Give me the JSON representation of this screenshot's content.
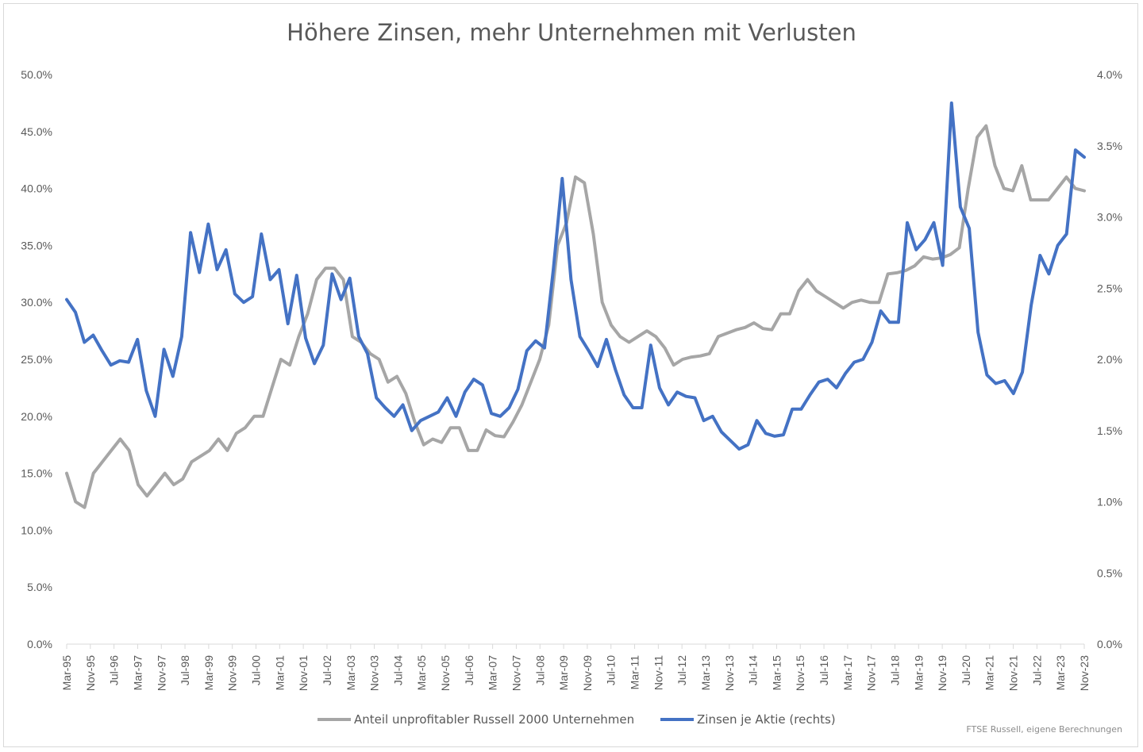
{
  "chart_data": {
    "type": "line",
    "title": "Höhere Zinsen, mehr Unternehmen mit Verlusten",
    "source": "FTSE Russell, eigene Berechnungen",
    "left_axis": {
      "ylim": [
        0,
        50
      ],
      "ticks": [
        "0.0%",
        "5.0%",
        "10.0%",
        "15.0%",
        "20.0%",
        "25.0%",
        "30.0%",
        "35.0%",
        "40.0%",
        "45.0%",
        "50.0%"
      ]
    },
    "right_axis": {
      "ylim": [
        0,
        4
      ],
      "ticks": [
        "0.0%",
        "0.5%",
        "1.0%",
        "1.5%",
        "2.0%",
        "2.5%",
        "3.0%",
        "3.5%",
        "4.0%"
      ]
    },
    "x_tick_labels": [
      "Mar-95",
      "Nov-95",
      "Jul-96",
      "Mar-97",
      "Nov-97",
      "Jul-98",
      "Mar-99",
      "Nov-99",
      "Jul-00",
      "Mar-01",
      "Nov-01",
      "Jul-02",
      "Mar-03",
      "Nov-03",
      "Jul-04",
      "Mar-05",
      "Nov-05",
      "Jul-06",
      "Mar-07",
      "Nov-07",
      "Jul-08",
      "Mar-09",
      "Nov-09",
      "Jul-10",
      "Mar-11",
      "Nov-11",
      "Jul-12",
      "Mar-13",
      "Nov-13",
      "Jul-14",
      "Mar-15",
      "Nov-15",
      "Jul-16",
      "Mar-17",
      "Nov-17",
      "Jul-18",
      "Mar-19",
      "Nov-19",
      "Jul-20",
      "Mar-21",
      "Nov-21",
      "Jul-22",
      "Mar-23",
      "Nov-23"
    ],
    "period_start": "Mar-95",
    "legend_position": "bottom",
    "series": [
      {
        "name": "Anteil unprofitabler Russell 2000 Unternehmen",
        "axis": "left",
        "color": "#a6a6a6",
        "values": [
          15.0,
          12.5,
          12.0,
          15.0,
          16.0,
          17.0,
          18.0,
          17.0,
          14.0,
          13.0,
          14.0,
          15.0,
          14.0,
          14.5,
          16.0,
          16.5,
          17.0,
          18.0,
          17.0,
          18.5,
          19.0,
          20.0,
          20.0,
          22.5,
          25.0,
          24.5,
          27.0,
          29.0,
          32.0,
          33.0,
          33.0,
          32.0,
          27.0,
          26.5,
          25.5,
          25.0,
          23.0,
          23.5,
          22.0,
          19.5,
          17.5,
          18.0,
          17.7,
          19.0,
          19.0,
          17.0,
          17.0,
          18.8,
          18.3,
          18.2,
          19.5,
          21.0,
          23.0,
          25.0,
          28.0,
          35.0,
          37.0,
          41.0,
          40.5,
          36.0,
          30.0,
          28.0,
          27.0,
          26.5,
          27.0,
          27.5,
          27.0,
          26.0,
          24.5,
          25.0,
          25.2,
          25.3,
          25.5,
          27.0,
          27.3,
          27.6,
          27.8,
          28.2,
          27.7,
          27.6,
          29.0,
          29.0,
          31.0,
          32.0,
          31.0,
          30.5,
          30.0,
          29.5,
          30.0,
          30.2,
          30.0,
          30.0,
          32.5,
          32.6,
          32.8,
          33.2,
          34.0,
          33.8,
          33.9,
          34.2,
          34.8,
          40.0,
          44.5,
          45.5,
          42.0,
          40.0,
          39.8,
          42.0,
          39.0,
          39.0,
          39.0,
          40.0,
          41.0,
          40.0,
          39.8
        ]
      },
      {
        "name": "Zinsen je Aktie (rechts)",
        "axis": "right",
        "color": "#4472c4",
        "values": [
          2.42,
          2.33,
          2.12,
          2.17,
          2.06,
          1.96,
          1.99,
          1.98,
          2.14,
          1.78,
          1.6,
          2.07,
          1.88,
          2.16,
          2.89,
          2.61,
          2.95,
          2.63,
          2.77,
          2.46,
          2.4,
          2.44,
          2.88,
          2.56,
          2.63,
          2.25,
          2.59,
          2.15,
          1.97,
          2.1,
          2.6,
          2.42,
          2.57,
          2.16,
          2.04,
          1.73,
          1.66,
          1.6,
          1.68,
          1.5,
          1.57,
          1.6,
          1.63,
          1.73,
          1.6,
          1.77,
          1.86,
          1.82,
          1.62,
          1.6,
          1.66,
          1.79,
          2.06,
          2.13,
          2.08,
          2.63,
          3.27,
          2.56,
          2.16,
          2.06,
          1.95,
          2.14,
          1.93,
          1.75,
          1.66,
          1.66,
          2.1,
          1.8,
          1.68,
          1.77,
          1.74,
          1.73,
          1.57,
          1.6,
          1.49,
          1.43,
          1.37,
          1.4,
          1.57,
          1.48,
          1.46,
          1.47,
          1.65,
          1.65,
          1.75,
          1.84,
          1.86,
          1.8,
          1.9,
          1.98,
          2.0,
          2.12,
          2.34,
          2.26,
          2.26,
          2.96,
          2.77,
          2.84,
          2.96,
          2.66,
          3.8,
          3.07,
          2.92,
          2.19,
          1.89,
          1.83,
          1.85,
          1.76,
          1.91,
          2.38,
          2.73,
          2.6,
          2.8,
          2.88,
          3.47,
          3.42
        ]
      }
    ]
  }
}
